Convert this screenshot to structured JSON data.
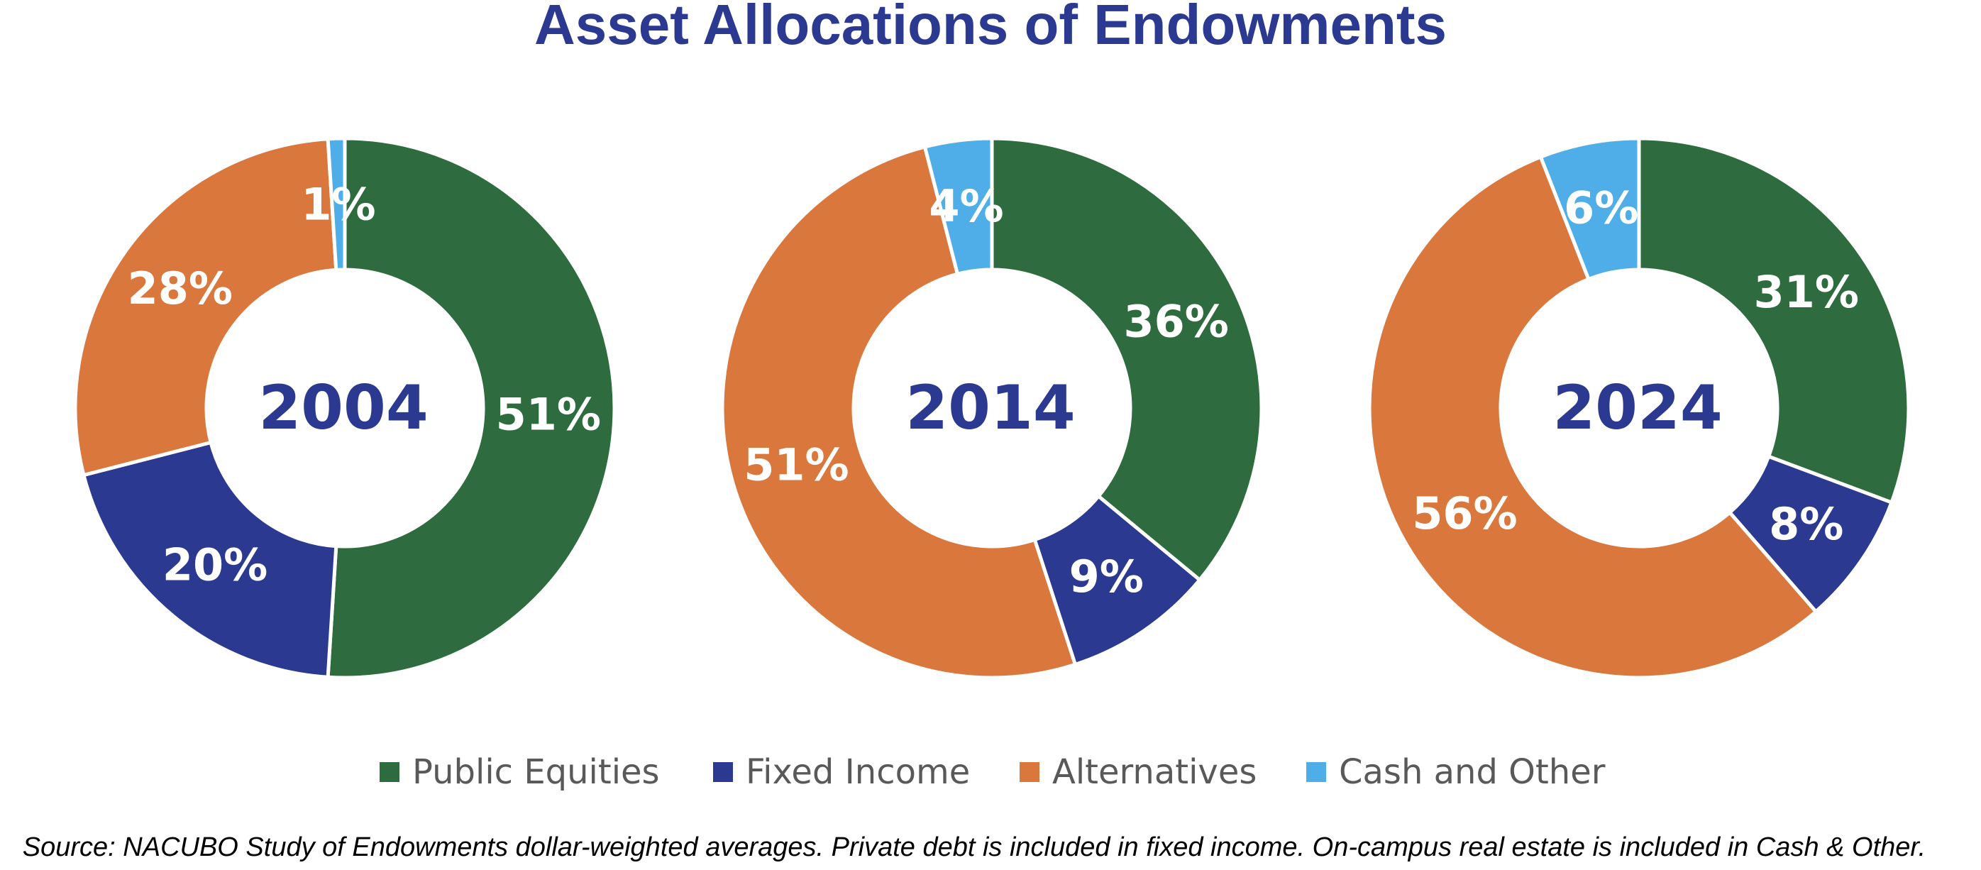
{
  "colors": {
    "title": "#2B3990",
    "center_label": "#2B3990",
    "slice_label": "#FFFFFF",
    "legend_text": "#595959",
    "source_text": "#000000",
    "slice_separator": "#FFFFFF"
  },
  "chart_data": {
    "type": "pie",
    "variant": "donut",
    "title": "Asset Allocations of Endowments",
    "value_unit": "%",
    "categories": [
      "Public Equities",
      "Fixed Income",
      "Alternatives",
      "Cash and Other"
    ],
    "category_colors": [
      "#2E6B3E",
      "#2B3990",
      "#D9773D",
      "#4FAEE7"
    ],
    "legend_placement": "bottom-center",
    "start_angle": "12 o'clock, clockwise",
    "charts": [
      {
        "center_label": "2004",
        "values": [
          51,
          20,
          28,
          1
        ],
        "labels": [
          "51%",
          "20%",
          "28%",
          "1%"
        ]
      },
      {
        "center_label": "2014",
        "values": [
          36,
          9,
          51,
          4
        ],
        "labels": [
          "36%",
          "9%",
          "51%",
          "4%"
        ]
      },
      {
        "center_label": "2024",
        "values": [
          31,
          8,
          56,
          6
        ],
        "labels": [
          "31%",
          "8%",
          "56%",
          "6%"
        ]
      }
    ]
  },
  "source_note": "Source: NACUBO Study of Endowments dollar-weighted averages. Private debt is included in fixed income. On-campus real estate is included in Cash & Other."
}
